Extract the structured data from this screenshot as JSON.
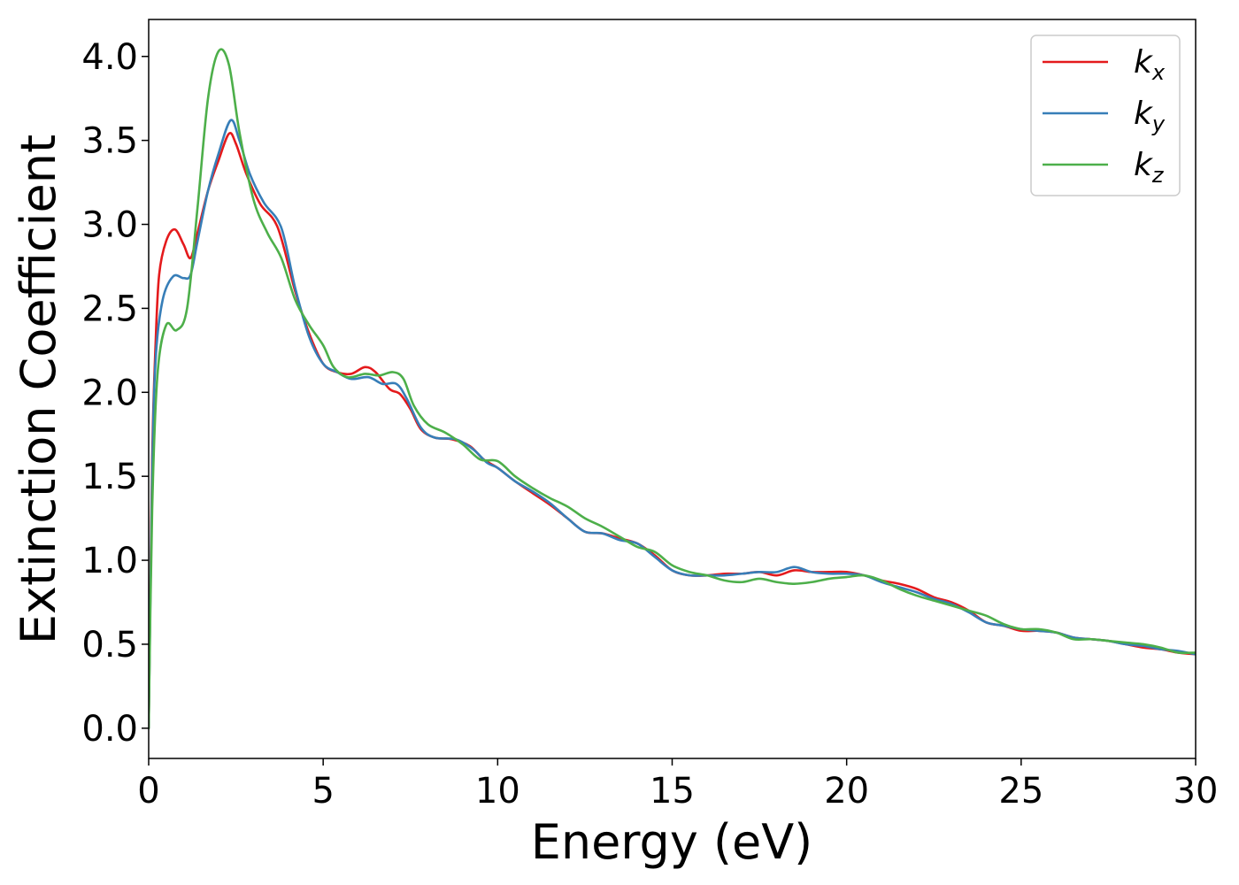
{
  "chart_data": {
    "type": "line",
    "xlabel": "Energy (eV)",
    "ylabel": "Extinction Coefficient",
    "xlim": [
      0,
      30
    ],
    "ylim": [
      -0.18,
      4.22
    ],
    "x_ticks": [
      0,
      5,
      10,
      15,
      20,
      25,
      30
    ],
    "x_tick_labels": [
      "0",
      "5",
      "10",
      "15",
      "20",
      "25",
      "30"
    ],
    "y_ticks": [
      0.0,
      0.5,
      1.0,
      1.5,
      2.0,
      2.5,
      3.0,
      3.5,
      4.0
    ],
    "y_tick_labels": [
      "0.0",
      "0.5",
      "1.0",
      "1.5",
      "2.0",
      "2.5",
      "3.0",
      "3.5",
      "4.0"
    ],
    "grid": false,
    "legend_position": "top-right",
    "series": [
      {
        "name": "k",
        "subscript": "x",
        "color": "#e41a1c",
        "points": [
          [
            0,
            0
          ],
          [
            0.1,
            1.6
          ],
          [
            0.2,
            2.3
          ],
          [
            0.3,
            2.7
          ],
          [
            0.5,
            2.9
          ],
          [
            0.75,
            2.97
          ],
          [
            1.0,
            2.88
          ],
          [
            1.2,
            2.8
          ],
          [
            1.4,
            2.95
          ],
          [
            1.7,
            3.2
          ],
          [
            2.0,
            3.38
          ],
          [
            2.3,
            3.54
          ],
          [
            2.5,
            3.48
          ],
          [
            2.8,
            3.3
          ],
          [
            3.2,
            3.12
          ],
          [
            3.7,
            2.98
          ],
          [
            4.2,
            2.6
          ],
          [
            4.6,
            2.35
          ],
          [
            5.0,
            2.17
          ],
          [
            5.4,
            2.12
          ],
          [
            5.8,
            2.11
          ],
          [
            6.2,
            2.15
          ],
          [
            6.5,
            2.12
          ],
          [
            6.9,
            2.02
          ],
          [
            7.2,
            1.99
          ],
          [
            7.5,
            1.9
          ],
          [
            7.8,
            1.78
          ],
          [
            8.2,
            1.73
          ],
          [
            8.7,
            1.72
          ],
          [
            9.2,
            1.68
          ],
          [
            9.6,
            1.6
          ],
          [
            10.0,
            1.55
          ],
          [
            10.5,
            1.47
          ],
          [
            11.0,
            1.4
          ],
          [
            11.5,
            1.33
          ],
          [
            12.0,
            1.25
          ],
          [
            12.5,
            1.17
          ],
          [
            13.0,
            1.16
          ],
          [
            13.5,
            1.13
          ],
          [
            14.0,
            1.1
          ],
          [
            14.5,
            1.03
          ],
          [
            15.0,
            0.94
          ],
          [
            15.5,
            0.91
          ],
          [
            16.0,
            0.91
          ],
          [
            16.5,
            0.92
          ],
          [
            17.0,
            0.92
          ],
          [
            17.5,
            0.93
          ],
          [
            18.0,
            0.91
          ],
          [
            18.5,
            0.94
          ],
          [
            19.0,
            0.93
          ],
          [
            19.5,
            0.93
          ],
          [
            20.0,
            0.93
          ],
          [
            20.5,
            0.91
          ],
          [
            21.0,
            0.88
          ],
          [
            21.5,
            0.86
          ],
          [
            22.0,
            0.83
          ],
          [
            22.5,
            0.78
          ],
          [
            23.0,
            0.75
          ],
          [
            23.5,
            0.7
          ],
          [
            24.0,
            0.63
          ],
          [
            24.5,
            0.61
          ],
          [
            25.0,
            0.58
          ],
          [
            25.5,
            0.58
          ],
          [
            26.0,
            0.57
          ],
          [
            26.5,
            0.54
          ],
          [
            27.0,
            0.53
          ],
          [
            27.5,
            0.52
          ],
          [
            28.0,
            0.5
          ],
          [
            28.5,
            0.48
          ],
          [
            29.0,
            0.47
          ],
          [
            29.5,
            0.45
          ],
          [
            30.0,
            0.44
          ]
        ]
      },
      {
        "name": "k",
        "subscript": "y",
        "color": "#377eb8",
        "points": [
          [
            0,
            0
          ],
          [
            0.1,
            1.5
          ],
          [
            0.2,
            2.2
          ],
          [
            0.4,
            2.55
          ],
          [
            0.7,
            2.69
          ],
          [
            1.0,
            2.68
          ],
          [
            1.2,
            2.7
          ],
          [
            1.4,
            2.9
          ],
          [
            1.7,
            3.2
          ],
          [
            2.0,
            3.42
          ],
          [
            2.35,
            3.62
          ],
          [
            2.6,
            3.5
          ],
          [
            2.9,
            3.3
          ],
          [
            3.3,
            3.13
          ],
          [
            3.8,
            2.98
          ],
          [
            4.2,
            2.62
          ],
          [
            4.6,
            2.33
          ],
          [
            5.0,
            2.17
          ],
          [
            5.4,
            2.12
          ],
          [
            5.8,
            2.08
          ],
          [
            6.3,
            2.09
          ],
          [
            6.7,
            2.05
          ],
          [
            7.1,
            2.05
          ],
          [
            7.4,
            1.96
          ],
          [
            7.8,
            1.79
          ],
          [
            8.2,
            1.73
          ],
          [
            8.8,
            1.72
          ],
          [
            9.3,
            1.66
          ],
          [
            9.7,
            1.58
          ],
          [
            10.0,
            1.55
          ],
          [
            10.5,
            1.47
          ],
          [
            11.0,
            1.41
          ],
          [
            11.5,
            1.34
          ],
          [
            12.0,
            1.25
          ],
          [
            12.5,
            1.17
          ],
          [
            13.0,
            1.16
          ],
          [
            13.5,
            1.12
          ],
          [
            14.0,
            1.1
          ],
          [
            14.5,
            1.02
          ],
          [
            15.0,
            0.94
          ],
          [
            15.5,
            0.91
          ],
          [
            16.0,
            0.91
          ],
          [
            16.5,
            0.91
          ],
          [
            17.0,
            0.92
          ],
          [
            17.5,
            0.93
          ],
          [
            18.0,
            0.93
          ],
          [
            18.5,
            0.96
          ],
          [
            19.0,
            0.93
          ],
          [
            19.5,
            0.92
          ],
          [
            20.0,
            0.92
          ],
          [
            20.5,
            0.91
          ],
          [
            21.0,
            0.87
          ],
          [
            21.5,
            0.84
          ],
          [
            22.0,
            0.81
          ],
          [
            22.5,
            0.77
          ],
          [
            23.0,
            0.74
          ],
          [
            23.5,
            0.69
          ],
          [
            24.0,
            0.63
          ],
          [
            24.5,
            0.61
          ],
          [
            25.0,
            0.59
          ],
          [
            25.5,
            0.58
          ],
          [
            26.0,
            0.57
          ],
          [
            26.5,
            0.54
          ],
          [
            27.0,
            0.53
          ],
          [
            27.5,
            0.52
          ],
          [
            28.0,
            0.5
          ],
          [
            28.5,
            0.49
          ],
          [
            29.0,
            0.47
          ],
          [
            29.5,
            0.46
          ],
          [
            30.0,
            0.44
          ]
        ]
      },
      {
        "name": "k",
        "subscript": "z",
        "color": "#4daf4a",
        "points": [
          [
            0,
            0
          ],
          [
            0.1,
            1.3
          ],
          [
            0.25,
            2.1
          ],
          [
            0.5,
            2.4
          ],
          [
            0.8,
            2.37
          ],
          [
            1.1,
            2.5
          ],
          [
            1.4,
            3.1
          ],
          [
            1.7,
            3.75
          ],
          [
            2.0,
            4.03
          ],
          [
            2.3,
            3.95
          ],
          [
            2.6,
            3.55
          ],
          [
            3.0,
            3.15
          ],
          [
            3.4,
            2.95
          ],
          [
            3.8,
            2.8
          ],
          [
            4.2,
            2.55
          ],
          [
            4.6,
            2.4
          ],
          [
            5.0,
            2.28
          ],
          [
            5.3,
            2.15
          ],
          [
            5.7,
            2.09
          ],
          [
            6.2,
            2.11
          ],
          [
            6.6,
            2.1
          ],
          [
            7.0,
            2.12
          ],
          [
            7.3,
            2.08
          ],
          [
            7.6,
            1.92
          ],
          [
            8.0,
            1.81
          ],
          [
            8.5,
            1.76
          ],
          [
            9.0,
            1.69
          ],
          [
            9.5,
            1.6
          ],
          [
            10.0,
            1.59
          ],
          [
            10.5,
            1.5
          ],
          [
            11.0,
            1.43
          ],
          [
            11.5,
            1.37
          ],
          [
            12.0,
            1.32
          ],
          [
            12.5,
            1.25
          ],
          [
            13.0,
            1.2
          ],
          [
            13.5,
            1.14
          ],
          [
            14.0,
            1.08
          ],
          [
            14.5,
            1.05
          ],
          [
            15.0,
            0.97
          ],
          [
            15.5,
            0.93
          ],
          [
            16.0,
            0.91
          ],
          [
            16.5,
            0.88
          ],
          [
            17.0,
            0.87
          ],
          [
            17.5,
            0.89
          ],
          [
            18.0,
            0.87
          ],
          [
            18.5,
            0.86
          ],
          [
            19.0,
            0.87
          ],
          [
            19.5,
            0.89
          ],
          [
            20.0,
            0.9
          ],
          [
            20.5,
            0.91
          ],
          [
            21.0,
            0.88
          ],
          [
            21.5,
            0.83
          ],
          [
            22.0,
            0.79
          ],
          [
            22.5,
            0.76
          ],
          [
            23.0,
            0.73
          ],
          [
            23.5,
            0.7
          ],
          [
            24.0,
            0.67
          ],
          [
            24.5,
            0.62
          ],
          [
            25.0,
            0.59
          ],
          [
            25.5,
            0.59
          ],
          [
            26.0,
            0.57
          ],
          [
            26.5,
            0.53
          ],
          [
            27.0,
            0.53
          ],
          [
            27.5,
            0.52
          ],
          [
            28.0,
            0.51
          ],
          [
            28.5,
            0.5
          ],
          [
            29.0,
            0.48
          ],
          [
            29.5,
            0.45
          ],
          [
            30.0,
            0.45
          ]
        ]
      }
    ]
  }
}
